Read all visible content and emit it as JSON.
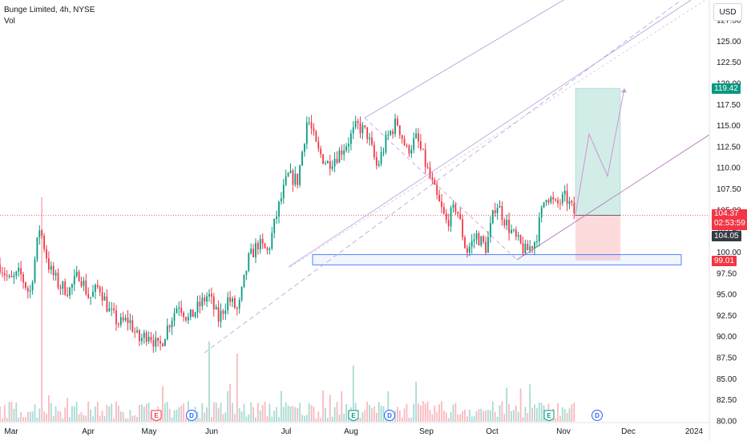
{
  "legend": {
    "title": "Bunge Limited, 4h, NYSE",
    "indicator": "Vol"
  },
  "currency": "USD",
  "chart_data": {
    "type": "candlestick",
    "y_axis": {
      "min": 80.0,
      "max": 128.5,
      "ticks": [
        "80.00",
        "82.50",
        "85.00",
        "87.50",
        "90.00",
        "92.50",
        "95.00",
        "97.50",
        "100.00",
        "102.50",
        "105.00",
        "107.50",
        "110.00",
        "112.50",
        "115.00",
        "117.50",
        "120.00",
        "122.50",
        "125.00",
        "127.50"
      ]
    },
    "x_axis": {
      "labels": [
        "Mar",
        "Apr",
        "May",
        "Jun",
        "Jul",
        "Aug",
        "Sep",
        "Oct",
        "Nov",
        "Dec",
        "2024"
      ]
    },
    "key_prices": [
      {
        "label": "119.42",
        "value": 119.42,
        "color": "#089981"
      },
      {
        "label": "104.37",
        "value": 104.37,
        "color": "#f23645",
        "countdown": "02:53:59"
      },
      {
        "label": "104.05",
        "value": 104.05,
        "color": "#363a45"
      },
      {
        "label": "99.01",
        "value": 99.01,
        "color": "#f23645"
      }
    ],
    "events": [
      {
        "type": "E",
        "date": "May"
      },
      {
        "type": "D",
        "date": "May"
      },
      {
        "type": "E",
        "date": "Aug"
      },
      {
        "type": "D",
        "date": "Aug"
      },
      {
        "type": "E",
        "date": "Oct/Nov"
      },
      {
        "type": "D",
        "date": "Nov"
      }
    ],
    "price_path": [
      [
        "Mar",
        98.5
      ],
      [
        "Mar",
        96.5
      ],
      [
        "Mar",
        97.5
      ],
      [
        "Mar",
        95.0
      ],
      [
        "Mar",
        103.0
      ],
      [
        "Mar",
        98.0
      ],
      [
        "Mar",
        96.0
      ],
      [
        "Apr",
        95.5
      ],
      [
        "Apr",
        97.5
      ],
      [
        "Apr",
        94.5
      ],
      [
        "Apr",
        96.0
      ],
      [
        "Apr",
        93.0
      ],
      [
        "May",
        91.5
      ],
      [
        "May",
        92.0
      ],
      [
        "May",
        89.5
      ],
      [
        "May",
        90.5
      ],
      [
        "Jun",
        88.5
      ],
      [
        "Jun",
        91.5
      ],
      [
        "Jun",
        94.0
      ],
      [
        "Jun",
        92.0
      ],
      [
        "Jun",
        93.5
      ],
      [
        "Jun",
        95.0
      ],
      [
        "Jul",
        92.0
      ],
      [
        "Jul",
        94.5
      ],
      [
        "Jul",
        93.0
      ],
      [
        "Jul",
        99.0
      ],
      [
        "Jul",
        101.0
      ],
      [
        "Jul",
        100.0
      ],
      [
        "Jul",
        105.0
      ],
      [
        "Jul",
        109.0
      ],
      [
        "Aug",
        108.5
      ],
      [
        "Aug",
        116.0
      ],
      [
        "Aug",
        112.0
      ],
      [
        "Aug",
        110.5
      ],
      [
        "Aug",
        111.5
      ],
      [
        "Aug",
        113.0
      ],
      [
        "Sep",
        115.0
      ],
      [
        "Sep",
        114.0
      ],
      [
        "Sep",
        110.0
      ],
      [
        "Sep",
        113.5
      ],
      [
        "Sep",
        115.5
      ],
      [
        "Sep",
        112.0
      ],
      [
        "Sep",
        113.5
      ],
      [
        "Oct",
        110.0
      ],
      [
        "Oct",
        106.5
      ],
      [
        "Oct",
        103.5
      ],
      [
        "Oct",
        105.5
      ],
      [
        "Oct",
        100.0
      ],
      [
        "Oct",
        102.0
      ],
      [
        "Oct",
        100.5
      ],
      [
        "Oct",
        106.0
      ],
      [
        "Oct",
        103.5
      ],
      [
        "Oct",
        101.5
      ],
      [
        "Nov",
        100.0
      ],
      [
        "Nov",
        101.5
      ],
      [
        "Nov",
        107.0
      ],
      [
        "Nov",
        105.5
      ],
      [
        "Nov",
        106.5
      ],
      [
        "Nov",
        104.4
      ]
    ],
    "long_position": {
      "entry": 104.37,
      "target": 119.42,
      "stop": 99.01
    },
    "support_zone": {
      "low": 98.5,
      "high": 99.7
    },
    "projection_path": [
      104.4,
      114.0,
      109.0,
      119.4
    ]
  }
}
